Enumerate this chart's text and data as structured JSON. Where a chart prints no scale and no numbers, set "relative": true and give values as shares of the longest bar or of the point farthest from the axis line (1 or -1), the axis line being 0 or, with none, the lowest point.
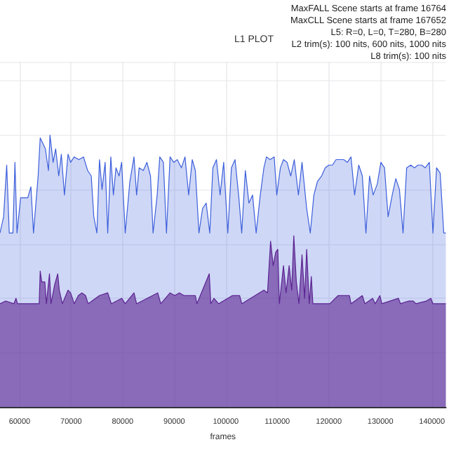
{
  "chart_data": {
    "type": "area",
    "title": "L1 PLOT",
    "xlabel": "frames",
    "relative": true,
    "grid": true,
    "annotations": [
      "MaxFALL Scene starts at frame 16764",
      "MaxCLL Scene starts at frame 167652",
      "L5: R=0, L=0, T=280, B=280",
      "L2 trim(s): 100 nits, 600 nits, 1000 nits",
      "L8 trim(s): 100 nits"
    ],
    "xlim": [
      56200,
      142700
    ],
    "xticks": [
      60000,
      70000,
      80000,
      90000,
      100000,
      110000,
      120000,
      130000,
      140000
    ],
    "series": [
      {
        "color": "#3d5fdb",
        "x": [
          56200,
          56900,
          57500,
          58000,
          58700,
          59100,
          59500,
          60200,
          61600,
          62200,
          62700,
          63600,
          64000,
          64500,
          65000,
          65600,
          65900,
          66500,
          67000,
          67600,
          68100,
          68700,
          69400,
          69900,
          70600,
          71500,
          72400,
          73200,
          73900,
          74400,
          75000,
          75500,
          76000,
          76600,
          77100,
          77700,
          78200,
          78700,
          79300,
          79800,
          80500,
          81400,
          82200,
          82700,
          83200,
          84000,
          84700,
          85400,
          85900,
          86700,
          87200,
          87900,
          88500,
          89200,
          89900,
          90600,
          91400,
          92100,
          92800,
          93500,
          94100,
          94800,
          95500,
          96200,
          96900,
          97500,
          98200,
          98900,
          99600,
          100400,
          101100,
          101800,
          102500,
          103100,
          103800,
          104500,
          105200,
          105900,
          106700,
          107400,
          107900,
          108600,
          109400,
          109900,
          110600,
          111200,
          111900,
          112600,
          113300,
          114100,
          114800,
          115700,
          116400,
          117100,
          117800,
          118600,
          119300,
          120000,
          120700,
          121400,
          122200,
          122900,
          123600,
          124300,
          125000,
          125800,
          126500,
          127200,
          127900,
          128600,
          129400,
          130100,
          130800,
          131500,
          132300,
          133000,
          133700,
          134400,
          135100,
          135900,
          136600,
          137300,
          138000,
          138700,
          139500,
          140200,
          140900,
          141600,
          142300,
          142700
        ],
        "values": [
          0.64,
          0.7,
          0.89,
          0.64,
          0.64,
          0.9,
          0.64,
          0.77,
          0.77,
          0.81,
          0.64,
          0.85,
          0.99,
          0.97,
          0.95,
          0.87,
          1.0,
          0.9,
          0.95,
          0.85,
          0.93,
          0.78,
          0.93,
          0.9,
          0.92,
          0.91,
          0.92,
          0.87,
          0.85,
          0.7,
          0.64,
          0.91,
          0.8,
          0.9,
          0.64,
          0.92,
          0.78,
          0.88,
          0.85,
          0.9,
          0.64,
          0.83,
          0.92,
          0.78,
          0.88,
          0.87,
          0.9,
          0.85,
          0.64,
          0.78,
          0.92,
          0.9,
          0.64,
          0.92,
          0.9,
          0.91,
          0.88,
          0.92,
          0.78,
          0.91,
          0.87,
          0.64,
          0.73,
          0.75,
          0.64,
          0.88,
          0.91,
          0.78,
          0.9,
          0.64,
          0.88,
          0.91,
          0.78,
          0.64,
          0.87,
          0.75,
          0.78,
          0.64,
          0.78,
          0.88,
          0.92,
          0.91,
          0.92,
          0.78,
          0.88,
          0.91,
          0.9,
          0.85,
          0.91,
          0.78,
          0.9,
          0.73,
          0.64,
          0.78,
          0.83,
          0.85,
          0.88,
          0.89,
          0.89,
          0.91,
          0.91,
          0.91,
          0.9,
          0.92,
          0.78,
          0.89,
          0.85,
          0.64,
          0.85,
          0.78,
          0.82,
          0.9,
          0.88,
          0.7,
          0.78,
          0.84,
          0.8,
          0.64,
          0.88,
          0.89,
          0.88,
          0.89,
          0.89,
          0.88,
          0.9,
          0.64,
          0.88,
          0.86,
          0.64,
          0.64
        ]
      },
      {
        "color": "#5b2391",
        "x": [
          56200,
          57300,
          58900,
          59300,
          59600,
          63800,
          64000,
          64300,
          64900,
          65200,
          65800,
          66100,
          66800,
          67400,
          67700,
          68300,
          69400,
          69900,
          70600,
          71400,
          72100,
          72800,
          73300,
          75500,
          77100,
          77800,
          79800,
          80500,
          82200,
          82700,
          86800,
          87400,
          89200,
          90100,
          91000,
          91900,
          94100,
          94400,
          96800,
          97100,
          97700,
          98600,
          101300,
          102700,
          103100,
          107400,
          108100,
          108700,
          109200,
          109700,
          110100,
          110400,
          111200,
          111700,
          112300,
          112800,
          113200,
          113700,
          114200,
          114800,
          115300,
          115700,
          116200,
          116600,
          116900,
          120200,
          121800,
          122900,
          124000,
          124300,
          126500,
          127000,
          128500,
          129000,
          129900,
          130300,
          133500,
          133900,
          135500,
          136400,
          136900,
          138900,
          139800,
          140200,
          142700
        ],
        "values": [
          0.38,
          0.39,
          0.38,
          0.4,
          0.38,
          0.38,
          0.5,
          0.46,
          0.46,
          0.38,
          0.49,
          0.38,
          0.45,
          0.49,
          0.43,
          0.38,
          0.43,
          0.42,
          0.38,
          0.41,
          0.42,
          0.41,
          0.38,
          0.41,
          0.42,
          0.38,
          0.4,
          0.38,
          0.42,
          0.38,
          0.42,
          0.38,
          0.42,
          0.41,
          0.42,
          0.41,
          0.41,
          0.38,
          0.49,
          0.38,
          0.4,
          0.38,
          0.41,
          0.41,
          0.38,
          0.43,
          0.42,
          0.61,
          0.52,
          0.57,
          0.58,
          0.38,
          0.52,
          0.42,
          0.52,
          0.43,
          0.63,
          0.46,
          0.38,
          0.56,
          0.4,
          0.58,
          0.38,
          0.48,
          0.38,
          0.38,
          0.41,
          0.41,
          0.41,
          0.38,
          0.41,
          0.38,
          0.4,
          0.38,
          0.41,
          0.38,
          0.4,
          0.38,
          0.39,
          0.39,
          0.38,
          0.39,
          0.4,
          0.38,
          0.38
        ]
      }
    ]
  }
}
